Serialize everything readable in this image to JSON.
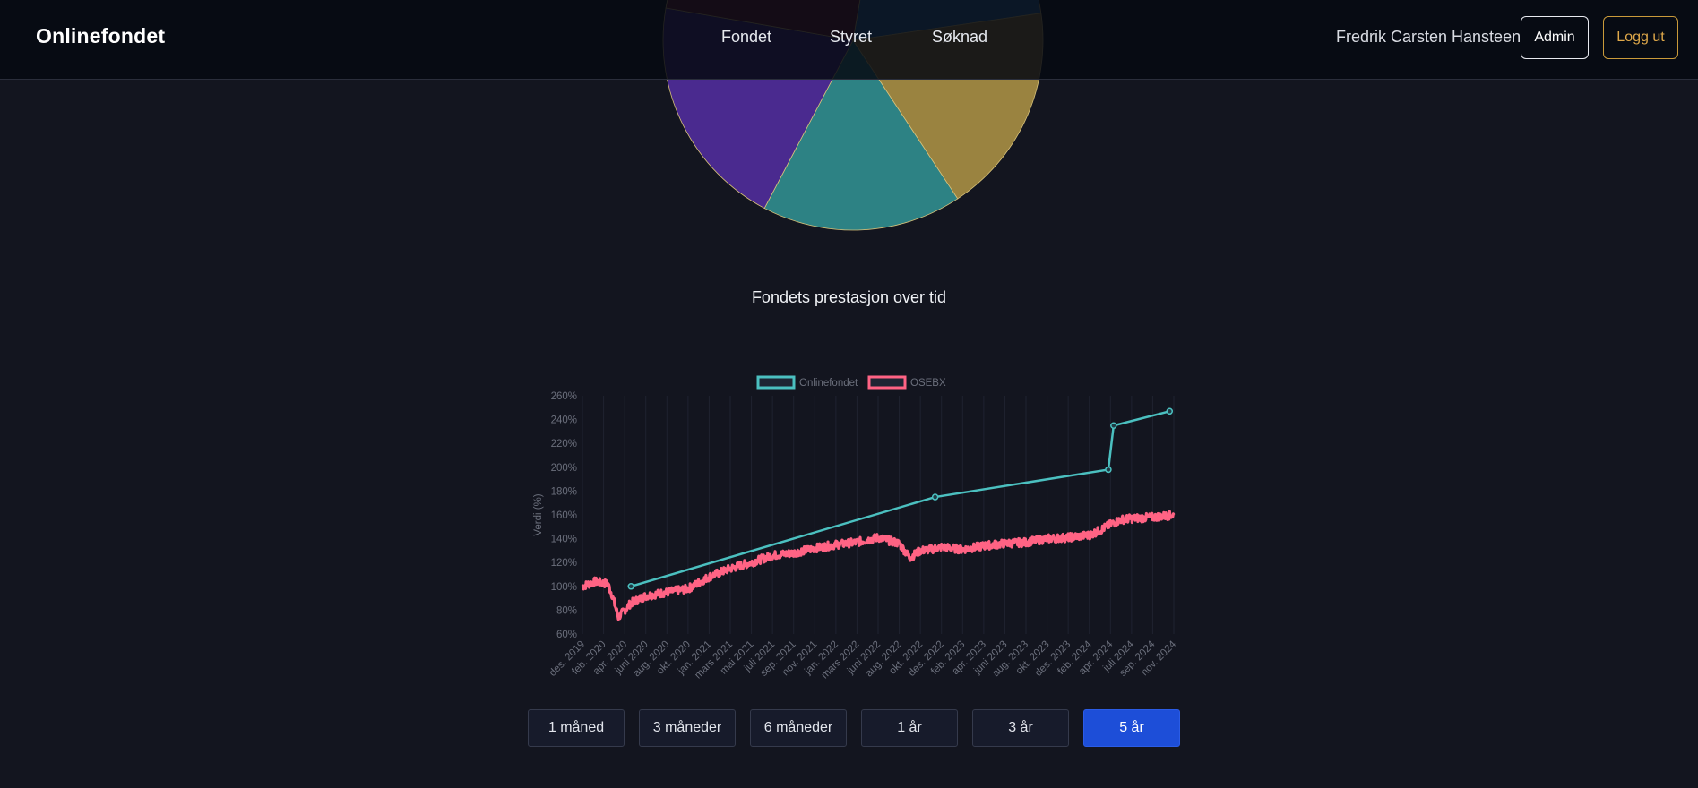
{
  "header": {
    "brand": "Onlinefondet",
    "nav": [
      "Fondet",
      "Styret",
      "Søknad"
    ],
    "user_name": "Fredrik Carsten Hansteen",
    "admin_label": "Admin",
    "logout_label": "Logg ut"
  },
  "pie": {
    "slices": [
      {
        "value": 20,
        "color": "#2f6ea0"
      },
      {
        "value": 18,
        "color": "#9a8340"
      },
      {
        "value": 17,
        "color": "#2d8284"
      },
      {
        "value": 20,
        "color": "#4a2a8f"
      },
      {
        "value": 25,
        "color": "#6b2232"
      }
    ]
  },
  "section_title": "Fondets prestasjon over tid",
  "chart_data": {
    "type": "line",
    "title": "",
    "ylabel": "Verdi (%)",
    "xlabel": "",
    "ylim": [
      60,
      260
    ],
    "yticks": [
      "260%",
      "240%",
      "220%",
      "200%",
      "180%",
      "160%",
      "140%",
      "120%",
      "100%",
      "80%",
      "60%"
    ],
    "xticks": [
      "des. 2019",
      "feb. 2020",
      "apr. 2020",
      "juni 2020",
      "aug. 2020",
      "okt. 2020",
      "jan. 2021",
      "mars 2021",
      "mai 2021",
      "juli 2021",
      "sep. 2021",
      "nov. 2021",
      "jan. 2022",
      "mars 2022",
      "juni 2022",
      "aug. 2022",
      "okt. 2022",
      "des. 2022",
      "feb. 2023",
      "apr. 2023",
      "juni 2023",
      "aug. 2023",
      "okt. 2023",
      "des. 2023",
      "feb. 2024",
      "apr. 2024",
      "juli 2024",
      "sep. 2024",
      "nov. 2024"
    ],
    "legend": "top",
    "series": [
      {
        "name": "Onlinefondet",
        "color": "#4bc0c0",
        "x": [
          2.3,
          16.7,
          24.9,
          25.15,
          27.8
        ],
        "y": [
          100,
          175,
          198,
          235,
          247
        ]
      },
      {
        "name": "OSEBX",
        "color": "#ff6384",
        "x": [
          0,
          0.6,
          1.2,
          1.4,
          1.7,
          2.0,
          2.3,
          3,
          4,
          5,
          6,
          7,
          8,
          9,
          10,
          11,
          12,
          13,
          14,
          15,
          15.5,
          16,
          16.5,
          17,
          18,
          19,
          20,
          21,
          22,
          23,
          24,
          24.5,
          25,
          25.5,
          26,
          27,
          28
        ],
        "y": [
          100,
          104,
          102,
          93,
          74,
          80,
          86,
          92,
          95,
          98,
          108,
          115,
          120,
          126,
          128,
          132,
          135,
          137,
          141,
          136,
          124,
          130,
          131,
          133,
          131,
          134,
          136,
          137,
          140,
          141,
          143,
          147,
          152,
          156,
          157,
          158,
          160
        ]
      }
    ]
  },
  "ranges": {
    "buttons": [
      "1 måned",
      "3 måneder",
      "6 måneder",
      "1 år",
      "3 år",
      "5 år"
    ],
    "active_index": 5
  }
}
